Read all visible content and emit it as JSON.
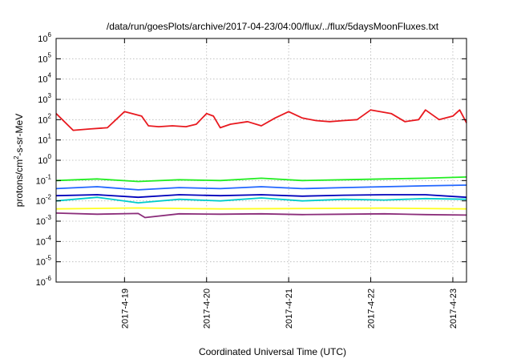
{
  "chart_data": {
    "type": "line",
    "title": "/data/run/goesPlots/archive/2017-04-23/04:00/flux/../flux/5daysMoonFluxes.txt",
    "xlabel": "Coordinated Universal Time (UTC)",
    "ylabel": {
      "pre": "protons/cm",
      "sup": "2",
      "post": "-s-sr-MeV"
    },
    "y_scale": "log",
    "ylim": [
      1e-06,
      1000000.0
    ],
    "yticks": [
      {
        "value": 1e-06,
        "base": "10",
        "exp": "-6"
      },
      {
        "value": 1e-05,
        "base": "10",
        "exp": "-5"
      },
      {
        "value": 0.0001,
        "base": "10",
        "exp": "-4"
      },
      {
        "value": 0.001,
        "base": "10",
        "exp": "-3"
      },
      {
        "value": 0.01,
        "base": "10",
        "exp": "-2"
      },
      {
        "value": 0.1,
        "base": "10",
        "exp": "-1"
      },
      {
        "value": 1.0,
        "base": "10",
        "exp": "0"
      },
      {
        "value": 10.0,
        "base": "10",
        "exp": "1"
      },
      {
        "value": 100.0,
        "base": "10",
        "exp": "2"
      },
      {
        "value": 1000.0,
        "base": "10",
        "exp": "3"
      },
      {
        "value": 10000.0,
        "base": "10",
        "exp": "4"
      },
      {
        "value": 100000.0,
        "base": "10",
        "exp": "5"
      },
      {
        "value": 1000000.0,
        "base": "10",
        "exp": "6"
      }
    ],
    "xlim": [
      "2017-04-18T04:00",
      "2017-04-23T04:00"
    ],
    "xticks": [
      "2017-4-19",
      "2017-4-20",
      "2017-4-21",
      "2017-4-22",
      "2017-4-23"
    ],
    "grid": true,
    "series": [
      {
        "color": "#e8191f",
        "x": [
          "2017-04-18T04:00",
          "2017-04-18T09:00",
          "2017-04-18T14:00",
          "2017-04-18T19:00",
          "2017-04-19T00:00",
          "2017-04-19T05:00",
          "2017-04-19T07:00",
          "2017-04-19T10:00",
          "2017-04-19T14:00",
          "2017-04-19T18:00",
          "2017-04-19T21:00",
          "2017-04-20T00:00",
          "2017-04-20T02:00",
          "2017-04-20T04:00",
          "2017-04-20T07:00",
          "2017-04-20T12:00",
          "2017-04-20T16:00",
          "2017-04-20T20:00",
          "2017-04-21T00:00",
          "2017-04-21T04:00",
          "2017-04-21T08:00",
          "2017-04-21T12:00",
          "2017-04-21T16:00",
          "2017-04-21T20:00",
          "2017-04-22T00:00",
          "2017-04-22T06:00",
          "2017-04-22T10:00",
          "2017-04-22T14:00",
          "2017-04-22T16:00",
          "2017-04-22T20:00",
          "2017-04-23T00:00",
          "2017-04-23T02:00",
          "2017-04-23T04:00"
        ],
        "y": [
          200,
          30,
          35,
          40,
          250,
          150,
          50,
          45,
          50,
          45,
          60,
          200,
          150,
          40,
          60,
          80,
          50,
          120,
          250,
          120,
          90,
          80,
          90,
          100,
          300,
          200,
          80,
          100,
          300,
          100,
          150,
          300,
          70
        ]
      },
      {
        "color": "#22ee22",
        "x": [
          "2017-04-18T04:00",
          "2017-04-18T16:00",
          "2017-04-19T04:00",
          "2017-04-19T16:00",
          "2017-04-20T04:00",
          "2017-04-20T16:00",
          "2017-04-21T04:00",
          "2017-04-21T16:00",
          "2017-04-22T04:00",
          "2017-04-22T16:00",
          "2017-04-23T04:00"
        ],
        "y": [
          0.1,
          0.12,
          0.09,
          0.11,
          0.1,
          0.13,
          0.1,
          0.11,
          0.12,
          0.13,
          0.15
        ]
      },
      {
        "color": "#00cccc",
        "x": [
          "2017-04-18T04:00",
          "2017-04-18T16:00",
          "2017-04-19T04:00",
          "2017-04-19T16:00",
          "2017-04-20T04:00",
          "2017-04-20T16:00",
          "2017-04-21T04:00",
          "2017-04-21T16:00",
          "2017-04-22T04:00",
          "2017-04-22T16:00",
          "2017-04-23T04:00"
        ],
        "y": [
          0.01,
          0.015,
          0.008,
          0.012,
          0.01,
          0.014,
          0.01,
          0.012,
          0.011,
          0.013,
          0.012
        ]
      },
      {
        "color": "#2266ff",
        "x": [
          "2017-04-18T04:00",
          "2017-04-18T16:00",
          "2017-04-19T04:00",
          "2017-04-19T16:00",
          "2017-04-20T04:00",
          "2017-04-20T16:00",
          "2017-04-21T04:00",
          "2017-04-21T16:00",
          "2017-04-22T04:00",
          "2017-04-22T16:00",
          "2017-04-23T04:00"
        ],
        "y": [
          0.04,
          0.05,
          0.035,
          0.045,
          0.04,
          0.05,
          0.04,
          0.045,
          0.05,
          0.055,
          0.06
        ]
      },
      {
        "color": "#0000bb",
        "x": [
          "2017-04-18T04:00",
          "2017-04-18T16:00",
          "2017-04-19T04:00",
          "2017-04-19T16:00",
          "2017-04-20T04:00",
          "2017-04-20T16:00",
          "2017-04-21T04:00",
          "2017-04-21T16:00",
          "2017-04-22T04:00",
          "2017-04-22T16:00",
          "2017-04-23T04:00"
        ],
        "y": [
          0.018,
          0.02,
          0.015,
          0.02,
          0.018,
          0.02,
          0.017,
          0.019,
          0.02,
          0.02,
          0.015
        ]
      },
      {
        "color": "#ffff22",
        "x": [
          "2017-04-18T04:00",
          "2017-04-19T04:00",
          "2017-04-20T04:00",
          "2017-04-21T04:00",
          "2017-04-22T04:00",
          "2017-04-23T04:00"
        ],
        "y": [
          0.004,
          0.0045,
          0.004,
          0.0042,
          0.0044,
          0.004
        ]
      },
      {
        "color": "#8b2d7a",
        "x": [
          "2017-04-18T04:00",
          "2017-04-18T16:00",
          "2017-04-19T04:00",
          "2017-04-19T06:00",
          "2017-04-19T16:00",
          "2017-04-20T04:00",
          "2017-04-20T16:00",
          "2017-04-21T04:00",
          "2017-04-21T16:00",
          "2017-04-22T04:00",
          "2017-04-22T16:00",
          "2017-04-23T04:00"
        ],
        "y": [
          0.0025,
          0.0022,
          0.0024,
          0.0015,
          0.0023,
          0.0022,
          0.0023,
          0.0021,
          0.0022,
          0.0023,
          0.0021,
          0.002
        ]
      }
    ]
  }
}
